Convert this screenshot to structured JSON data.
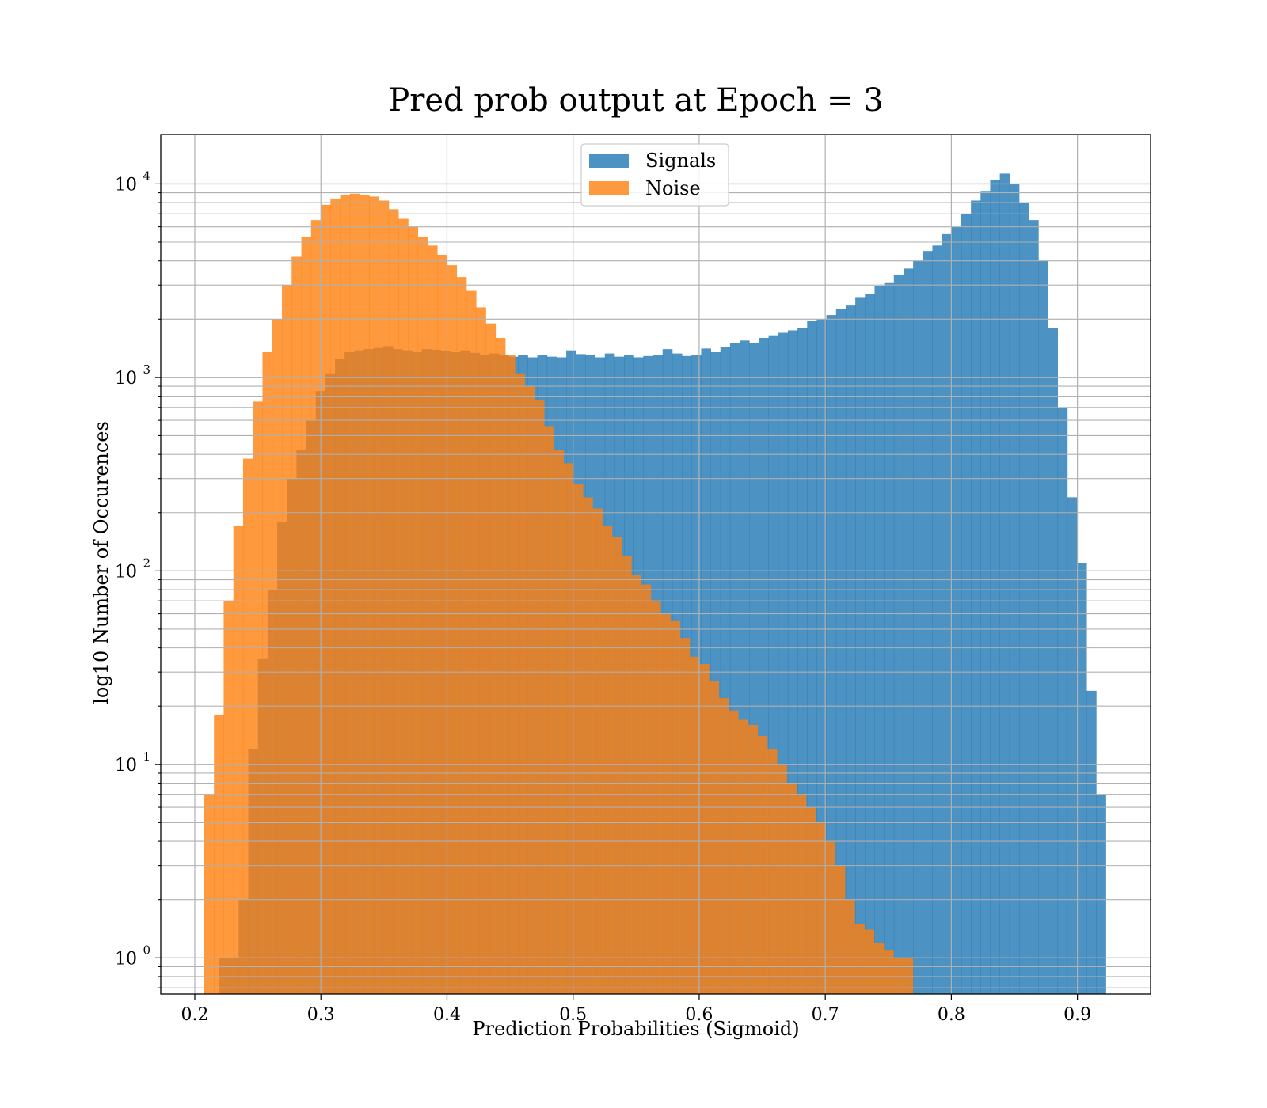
{
  "chart_data": {
    "type": "bar",
    "subtype": "histogram",
    "title": "Pred prob output at Epoch = 3",
    "xlabel": "Prediction Probabilities (Sigmoid)",
    "ylabel": "log10 Number of Occurences",
    "xlim": [
      0.173,
      0.958
    ],
    "ylim": [
      0.65,
      18000
    ],
    "yscale": "log",
    "grid": true,
    "legend_position": "upper center",
    "x_ticks": [
      "0.2",
      "0.3",
      "0.4",
      "0.5",
      "0.6",
      "0.7",
      "0.8",
      "0.9"
    ],
    "y_ticks": [
      {
        "base": "10",
        "exp": "0",
        "value": 1
      },
      {
        "base": "10",
        "exp": "1",
        "value": 10
      },
      {
        "base": "10",
        "exp": "2",
        "value": 100
      },
      {
        "base": "10",
        "exp": "3",
        "value": 1000
      },
      {
        "base": "10",
        "exp": "4",
        "value": 10000
      }
    ],
    "series": [
      {
        "name": "Signals",
        "color": "#1f77b4",
        "alpha": 0.8,
        "x_start": 0.2195,
        "x_end": 0.9225,
        "values": [
          1,
          1,
          2,
          12,
          35,
          80,
          180,
          300,
          420,
          600,
          850,
          1050,
          1250,
          1350,
          1380,
          1400,
          1420,
          1450,
          1400,
          1380,
          1350,
          1400,
          1390,
          1370,
          1350,
          1380,
          1340,
          1310,
          1330,
          1300,
          1280,
          1310,
          1270,
          1300,
          1280,
          1270,
          1380,
          1320,
          1300,
          1270,
          1330,
          1280,
          1300,
          1270,
          1290,
          1300,
          1400,
          1330,
          1290,
          1310,
          1410,
          1350,
          1430,
          1500,
          1550,
          1500,
          1600,
          1650,
          1700,
          1750,
          1800,
          1950,
          2000,
          2100,
          2250,
          2350,
          2600,
          2700,
          2950,
          3100,
          3400,
          3650,
          4000,
          4500,
          4800,
          5500,
          6000,
          7000,
          8200,
          9200,
          10500,
          11300,
          10000,
          8000,
          6500,
          4000,
          1800,
          700,
          240,
          110,
          24,
          7
        ]
      },
      {
        "name": "Noise",
        "color": "#ff7f0e",
        "alpha": 0.8,
        "x_start": 0.2075,
        "x_end": 0.7695,
        "values": [
          7,
          18,
          70,
          170,
          380,
          750,
          1350,
          2000,
          3000,
          4200,
          5300,
          6500,
          7800,
          8400,
          8800,
          8900,
          8800,
          8600,
          8200,
          7400,
          6600,
          6000,
          5300,
          4800,
          4300,
          3800,
          3300,
          2800,
          2300,
          1900,
          1600,
          1300,
          1050,
          900,
          760,
          560,
          420,
          360,
          280,
          240,
          210,
          170,
          150,
          120,
          95,
          85,
          70,
          60,
          55,
          45,
          36,
          33,
          27,
          22,
          19,
          17,
          16,
          14,
          12,
          10,
          8,
          7,
          6,
          5,
          4,
          3,
          2,
          1.5,
          1.4,
          1.2,
          1.1,
          1.0,
          1.0
        ]
      }
    ]
  }
}
